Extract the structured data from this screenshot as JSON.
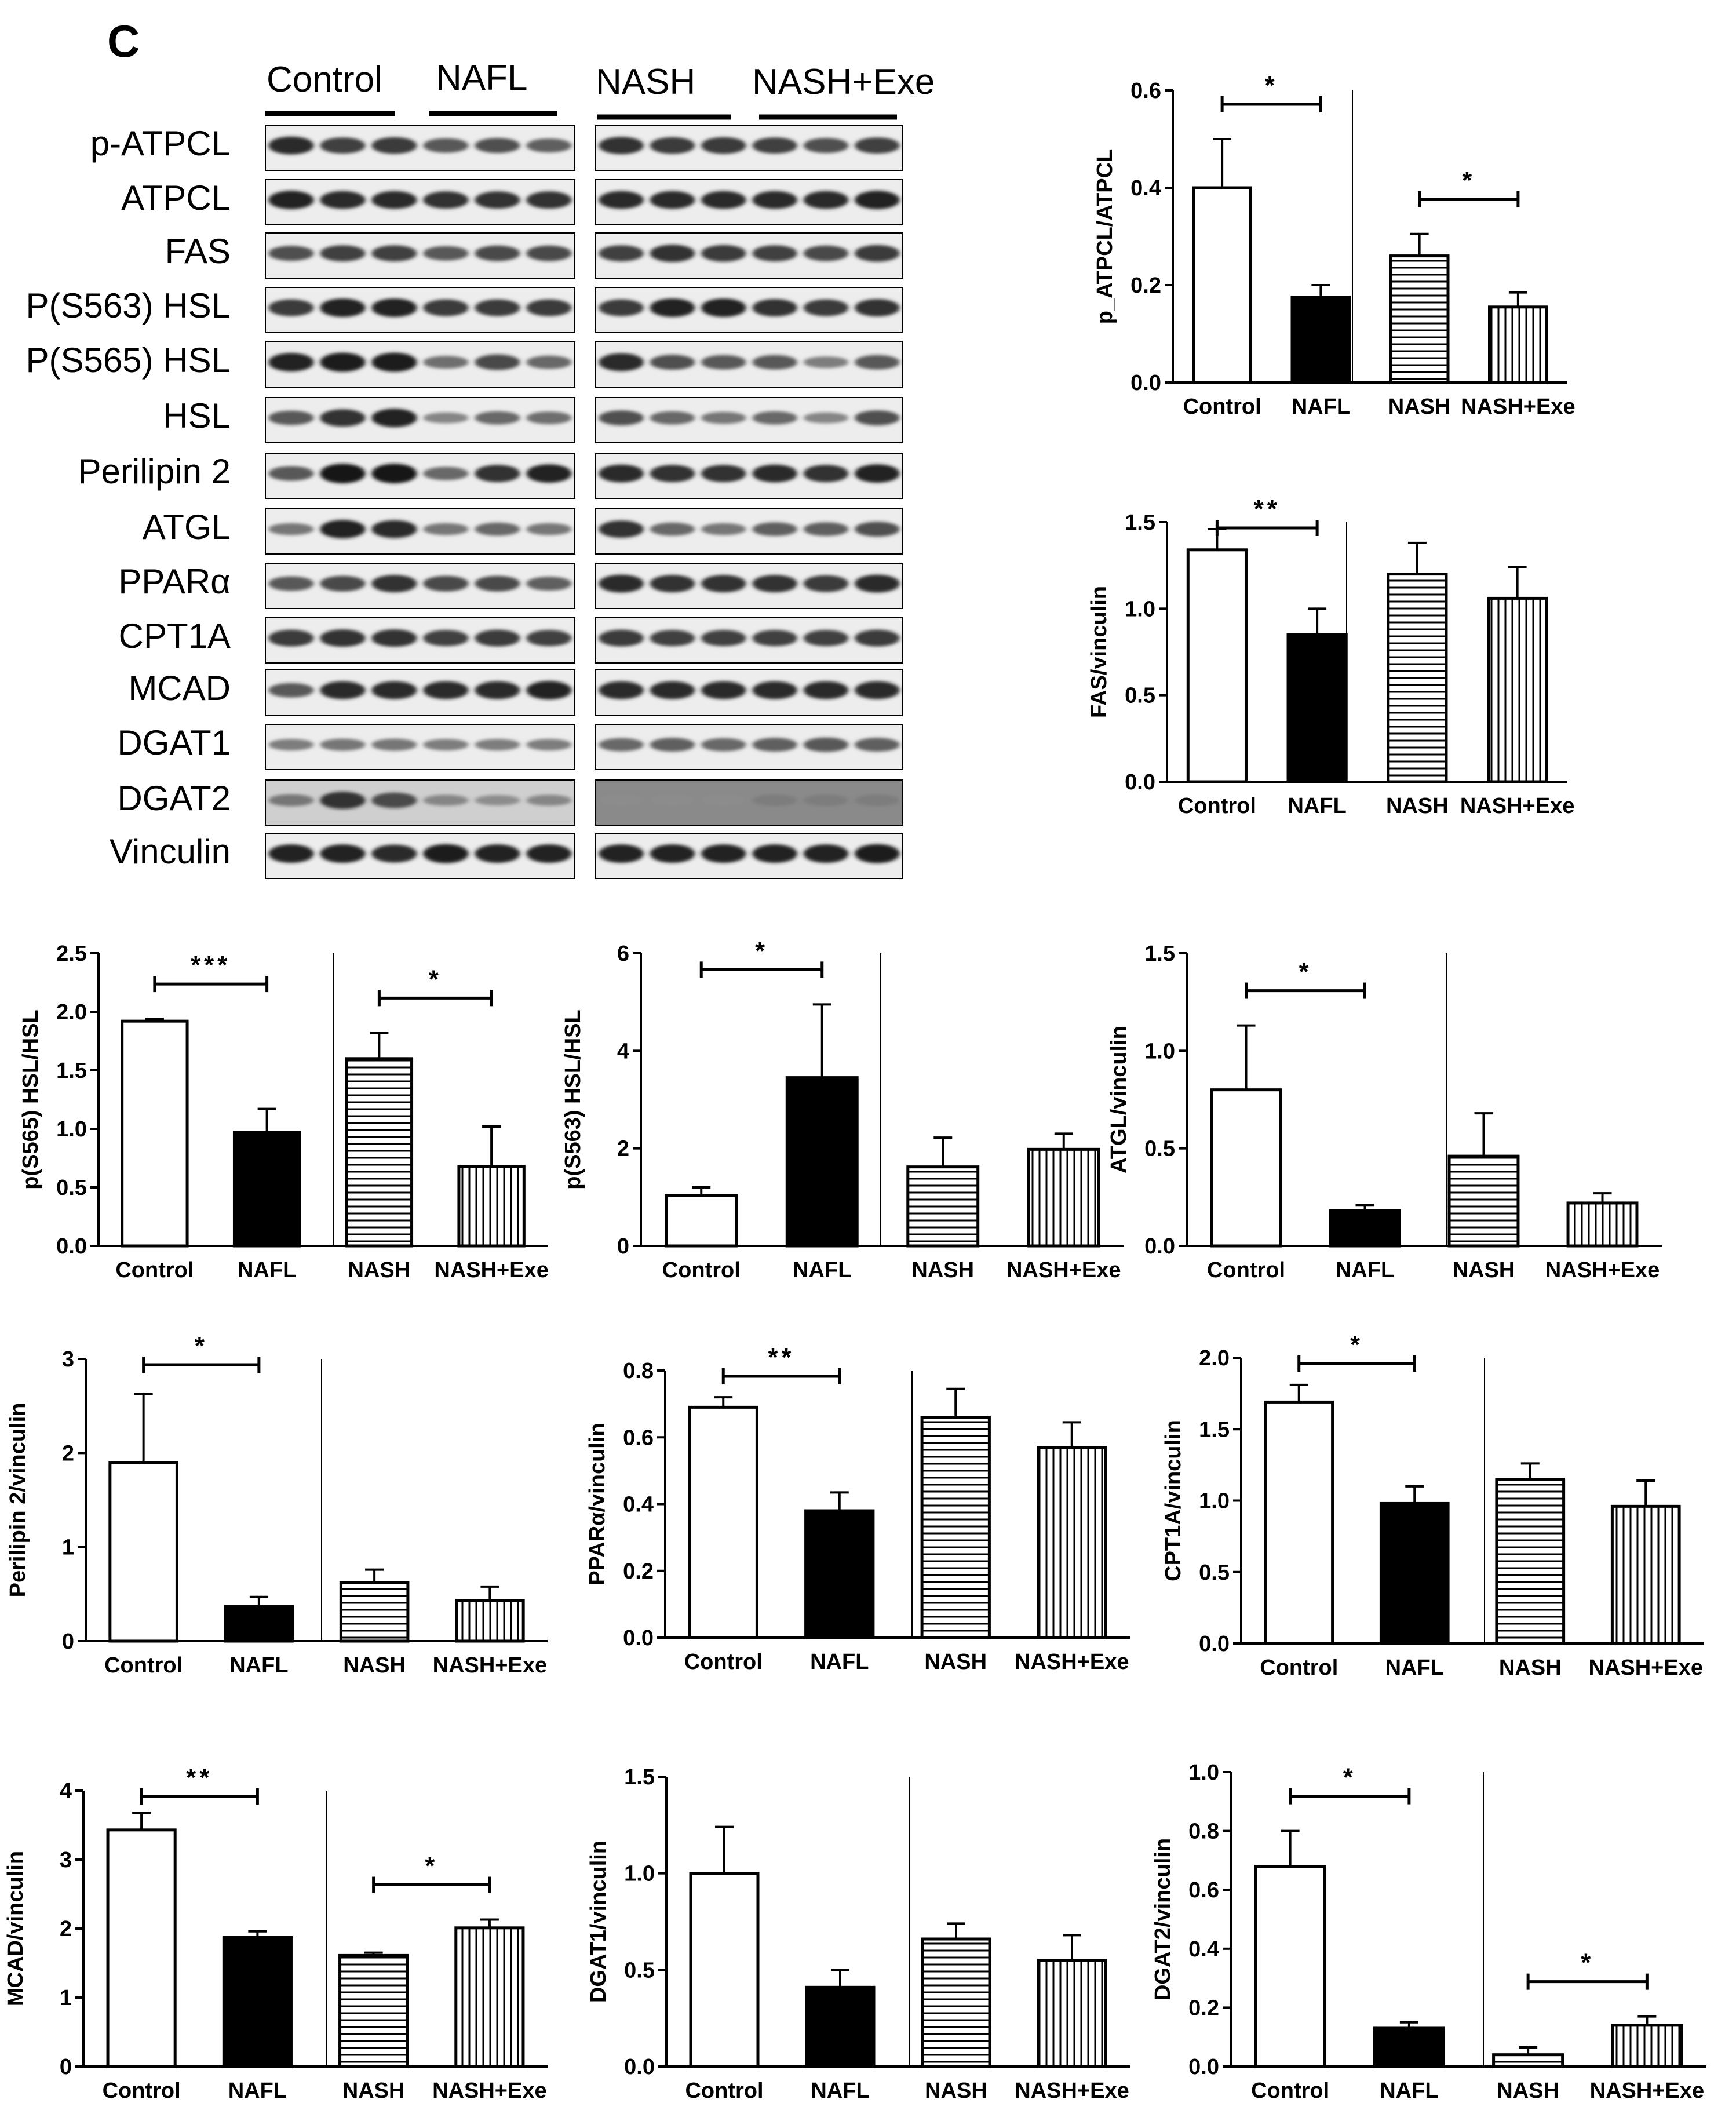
{
  "figure": {
    "panel_label": "C",
    "blot": {
      "left_groups": [
        "Control",
        "NAFL"
      ],
      "right_groups": [
        "NASH",
        "NASH+Exe"
      ],
      "proteins": [
        "p-ATPCL",
        "ATPCL",
        "FAS",
        "P(S563) HSL",
        "P(S565) HSL",
        "HSL",
        "Perilipin 2",
        "ATGL",
        "PPARα",
        "CPT1A",
        "MCAD",
        "DGAT1",
        "DGAT2",
        "Vinculin"
      ]
    }
  },
  "chart_data": [
    {
      "type": "bar",
      "categories": [
        "Control",
        "NAFL",
        "NASH",
        "NASH+Exe"
      ],
      "values": [
        0.4,
        0.175,
        0.26,
        0.155
      ],
      "errors": [
        0.1,
        0.025,
        0.045,
        0.03
      ],
      "ylabel": "p_ATPCL/ATPCL",
      "ylim": [
        0,
        0.6
      ],
      "yticks": [
        "0.0",
        "0.2",
        "0.4",
        "0.6"
      ],
      "significance": [
        {
          "from": 0,
          "to": 1,
          "label": "*"
        },
        {
          "from": 2,
          "to": 3,
          "label": "*"
        }
      ],
      "patterns": [
        "open",
        "solid",
        "horizontal",
        "vertical"
      ]
    },
    {
      "type": "bar",
      "categories": [
        "Control",
        "NAFL",
        "NASH",
        "NASH+Exe"
      ],
      "values": [
        1.34,
        0.85,
        1.2,
        1.06
      ],
      "errors": [
        0.12,
        0.15,
        0.18,
        0.18
      ],
      "ylabel": "FAS/vinculin",
      "ylim": [
        0,
        1.5
      ],
      "yticks": [
        "0.0",
        "0.5",
        "1.0",
        "1.5"
      ],
      "significance": [
        {
          "from": 0,
          "to": 1,
          "label": "**"
        }
      ],
      "patterns": [
        "open",
        "solid",
        "horizontal",
        "vertical"
      ]
    },
    {
      "type": "bar",
      "categories": [
        "Control",
        "NAFL",
        "NASH",
        "NASH+Exe"
      ],
      "values": [
        1.92,
        0.97,
        1.6,
        0.68
      ],
      "errors": [
        0.02,
        0.2,
        0.22,
        0.34
      ],
      "ylabel": "p(S565) HSL/HSL",
      "ylim": [
        0,
        2.5
      ],
      "yticks": [
        "0.0",
        "0.5",
        "1.0",
        "1.5",
        "2.0",
        "2.5"
      ],
      "significance": [
        {
          "from": 0,
          "to": 1,
          "label": "***"
        },
        {
          "from": 2,
          "to": 3,
          "label": "*"
        }
      ],
      "patterns": [
        "open",
        "solid",
        "horizontal",
        "vertical"
      ]
    },
    {
      "type": "bar",
      "categories": [
        "Control",
        "NAFL",
        "NASH",
        "NASH+Exe"
      ],
      "values": [
        1.03,
        3.45,
        1.62,
        1.98
      ],
      "errors": [
        0.17,
        1.5,
        0.6,
        0.32
      ],
      "ylabel": "p(S563) HSL/HSL",
      "ylim": [
        0,
        6
      ],
      "yticks": [
        "0",
        "2",
        "4",
        "6"
      ],
      "significance": [
        {
          "from": 0,
          "to": 1,
          "label": "*"
        }
      ],
      "patterns": [
        "open",
        "solid",
        "horizontal",
        "vertical"
      ]
    },
    {
      "type": "bar",
      "categories": [
        "Control",
        "NAFL",
        "NASH",
        "NASH+Exe"
      ],
      "values": [
        0.8,
        0.18,
        0.46,
        0.22
      ],
      "errors": [
        0.33,
        0.03,
        0.22,
        0.05
      ],
      "ylabel": "ATGL/vinculin",
      "ylim": [
        0,
        1.5
      ],
      "yticks": [
        "0.0",
        "0.5",
        "1.0",
        "1.5"
      ],
      "significance": [
        {
          "from": 0,
          "to": 1,
          "label": "*"
        }
      ],
      "patterns": [
        "open",
        "solid",
        "horizontal",
        "vertical"
      ]
    },
    {
      "type": "bar",
      "categories": [
        "Control",
        "NAFL",
        "NASH",
        "NASH+Exe"
      ],
      "values": [
        1.9,
        0.37,
        0.62,
        0.43
      ],
      "errors": [
        0.73,
        0.1,
        0.14,
        0.15
      ],
      "ylabel": "Perilipin 2/vinculin",
      "ylim": [
        0,
        3
      ],
      "yticks": [
        "0",
        "1",
        "2",
        "3"
      ],
      "significance": [
        {
          "from": 0,
          "to": 1,
          "label": "*"
        }
      ],
      "patterns": [
        "open",
        "solid",
        "horizontal",
        "vertical"
      ]
    },
    {
      "type": "bar",
      "categories": [
        "Control",
        "NAFL",
        "NASH",
        "NASH+Exe"
      ],
      "values": [
        0.69,
        0.38,
        0.66,
        0.57
      ],
      "errors": [
        0.03,
        0.055,
        0.085,
        0.075
      ],
      "ylabel": "PPARα/vinculin",
      "ylim": [
        0,
        0.8
      ],
      "yticks": [
        "0.0",
        "0.2",
        "0.4",
        "0.6",
        "0.8"
      ],
      "significance": [
        {
          "from": 0,
          "to": 1,
          "label": "**"
        }
      ],
      "patterns": [
        "open",
        "solid",
        "horizontal",
        "vertical"
      ]
    },
    {
      "type": "bar",
      "categories": [
        "Control",
        "NAFL",
        "NASH",
        "NASH+Exe"
      ],
      "values": [
        1.69,
        0.98,
        1.15,
        0.96
      ],
      "errors": [
        0.12,
        0.12,
        0.11,
        0.18
      ],
      "ylabel": "CPT1A/vinculin",
      "ylim": [
        0,
        2.0
      ],
      "yticks": [
        "0.0",
        "0.5",
        "1.0",
        "1.5",
        "2.0"
      ],
      "significance": [
        {
          "from": 0,
          "to": 1,
          "label": "*"
        }
      ],
      "patterns": [
        "open",
        "solid",
        "horizontal",
        "vertical"
      ]
    },
    {
      "type": "bar",
      "categories": [
        "Control",
        "NAFL",
        "NASH",
        "NASH+Exe"
      ],
      "values": [
        3.43,
        1.87,
        1.61,
        2.01
      ],
      "errors": [
        0.25,
        0.09,
        0.04,
        0.12
      ],
      "ylabel": "MCAD/vinculin",
      "ylim": [
        0,
        4
      ],
      "yticks": [
        "0",
        "1",
        "2",
        "3",
        "4"
      ],
      "significance": [
        {
          "from": 0,
          "to": 1,
          "label": "**"
        },
        {
          "from": 2,
          "to": 3,
          "label": "*"
        }
      ],
      "patterns": [
        "open",
        "solid",
        "horizontal",
        "vertical"
      ]
    },
    {
      "type": "bar",
      "categories": [
        "Control",
        "NAFL",
        "NASH",
        "NASH+Exe"
      ],
      "values": [
        1.0,
        0.41,
        0.66,
        0.55
      ],
      "errors": [
        0.24,
        0.09,
        0.08,
        0.13
      ],
      "ylabel": "DGAT1/vinculin",
      "ylim": [
        0,
        1.5
      ],
      "yticks": [
        "0.0",
        "0.5",
        "1.0",
        "1.5"
      ],
      "significance": [],
      "patterns": [
        "open",
        "solid",
        "horizontal",
        "vertical"
      ]
    },
    {
      "type": "bar",
      "categories": [
        "Control",
        "NAFL",
        "NASH",
        "NASH+Exe"
      ],
      "values": [
        0.68,
        0.13,
        0.04,
        0.14
      ],
      "errors": [
        0.12,
        0.02,
        0.025,
        0.03
      ],
      "ylabel": "DGAT2/vinculin",
      "ylim": [
        0,
        1.0
      ],
      "yticks": [
        "0.0",
        "0.2",
        "0.4",
        "0.6",
        "0.8",
        "1.0"
      ],
      "significance": [
        {
          "from": 0,
          "to": 1,
          "label": "*"
        },
        {
          "from": 2,
          "to": 3,
          "label": "*"
        }
      ],
      "patterns": [
        "open",
        "solid",
        "horizontal",
        "vertical"
      ]
    }
  ]
}
